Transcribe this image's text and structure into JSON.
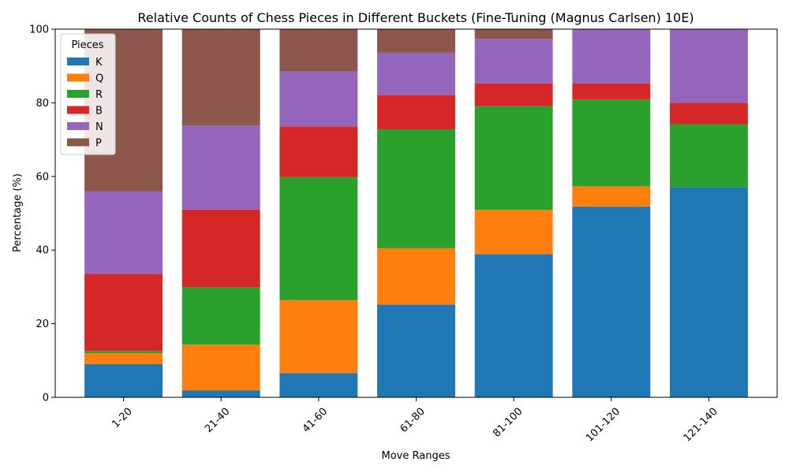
{
  "chart_data": {
    "type": "bar",
    "stacked": true,
    "title": "Relative Counts of Chess Pieces in Different Buckets (Fine-Tuning (Magnus Carlsen) 10E)",
    "xlabel": "Move Ranges",
    "ylabel": "Percentage (%)",
    "ylim": [
      0,
      100
    ],
    "yticks": [
      0,
      20,
      40,
      60,
      80,
      100
    ],
    "categories": [
      "1-20",
      "21-40",
      "41-60",
      "61-80",
      "81-100",
      "101-120",
      "121-140"
    ],
    "legend_title": "Pieces",
    "legend_position": "top-left",
    "grid": false,
    "series": [
      {
        "name": "K",
        "color": "#1f77b4",
        "values": [
          9.0,
          1.9,
          6.6,
          25.2,
          38.9,
          51.8,
          57.1
        ]
      },
      {
        "name": "Q",
        "color": "#ff7f0e",
        "values": [
          3.0,
          12.4,
          19.8,
          15.3,
          12.0,
          5.5,
          0.0
        ]
      },
      {
        "name": "R",
        "color": "#2ca02c",
        "values": [
          0.6,
          15.6,
          33.4,
          32.3,
          28.2,
          23.6,
          17.1
        ]
      },
      {
        "name": "B",
        "color": "#d62728",
        "values": [
          20.9,
          21.1,
          13.8,
          9.3,
          6.2,
          4.4,
          5.8
        ]
      },
      {
        "name": "N",
        "color": "#9467bd",
        "values": [
          22.5,
          22.8,
          14.9,
          11.5,
          12.1,
          14.7,
          20.0
        ]
      },
      {
        "name": "P",
        "color": "#8c564b",
        "values": [
          44.0,
          26.2,
          11.5,
          6.4,
          2.6,
          0.0,
          0.0
        ]
      }
    ]
  }
}
